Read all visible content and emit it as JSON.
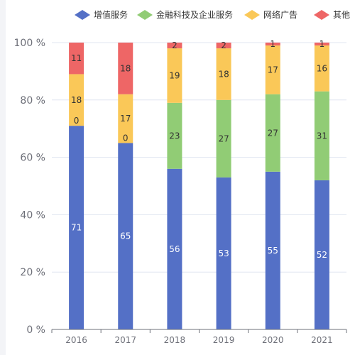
{
  "chart_data": {
    "type": "bar",
    "stacked": true,
    "categories": [
      "2016",
      "2017",
      "2018",
      "2019",
      "2020",
      "2021"
    ],
    "series": [
      {
        "name": "增值服务",
        "color": "#5470c6",
        "values": [
          71,
          65,
          56,
          53,
          55,
          52
        ]
      },
      {
        "name": "金融科技及企业服务",
        "color": "#91cc75",
        "values": [
          0,
          0,
          23,
          27,
          27,
          31
        ]
      },
      {
        "name": "网络广告",
        "color": "#fac858",
        "values": [
          18,
          17,
          19,
          18,
          17,
          16
        ]
      },
      {
        "name": "其他",
        "color": "#ee6666",
        "values": [
          11,
          18,
          2,
          2,
          1,
          1
        ]
      }
    ],
    "y_ticks": [
      "0 %",
      "20 %",
      "40 %",
      "60 %",
      "80 %",
      "100 %"
    ],
    "ylim": [
      0,
      100
    ],
    "grid": true,
    "legend_position": "top-right",
    "title": "",
    "xlabel": "",
    "ylabel": ""
  }
}
